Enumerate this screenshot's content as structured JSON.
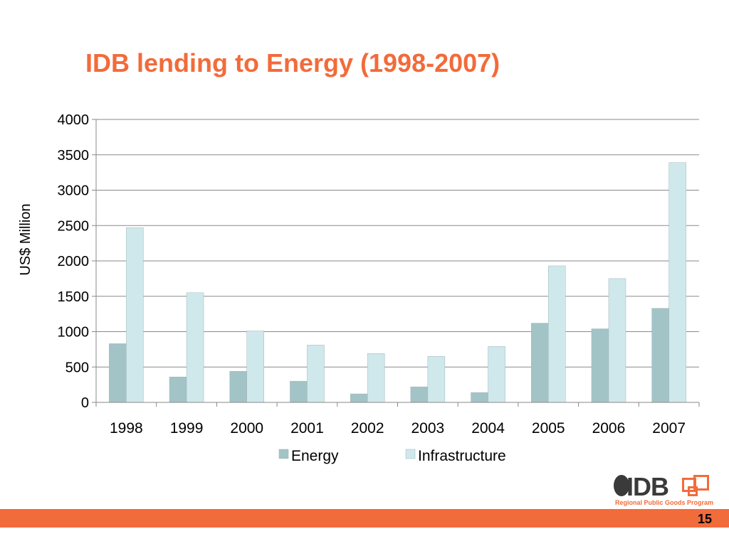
{
  "slide": {
    "title": "IDB lending to Energy (1998-2007)",
    "page_number": "15",
    "accent_color": "#f26b3a"
  },
  "logo": {
    "text": "IDB",
    "subtitle": "Regional Public Goods Program",
    "icon": "globe-icon"
  },
  "chart_data": {
    "type": "bar",
    "title": "",
    "xlabel": "",
    "ylabel": "US$ Million",
    "categories": [
      "1998",
      "1999",
      "2000",
      "2001",
      "2002",
      "2003",
      "2004",
      "2005",
      "2006",
      "2007"
    ],
    "series": [
      {
        "name": "Energy",
        "color": "#a3c4c6",
        "values": [
          830,
          360,
          440,
          300,
          120,
          220,
          140,
          1120,
          1040,
          1330
        ]
      },
      {
        "name": "Infrastructure",
        "color": "#cfe8ec",
        "values": [
          2470,
          1550,
          1010,
          810,
          690,
          650,
          790,
          1930,
          1750,
          3390
        ]
      }
    ],
    "ylim": [
      0,
      4000
    ],
    "yticks": [
      0,
      500,
      1000,
      1500,
      2000,
      2500,
      3000,
      3500,
      4000
    ],
    "grid": true,
    "legend_position": "bottom"
  }
}
